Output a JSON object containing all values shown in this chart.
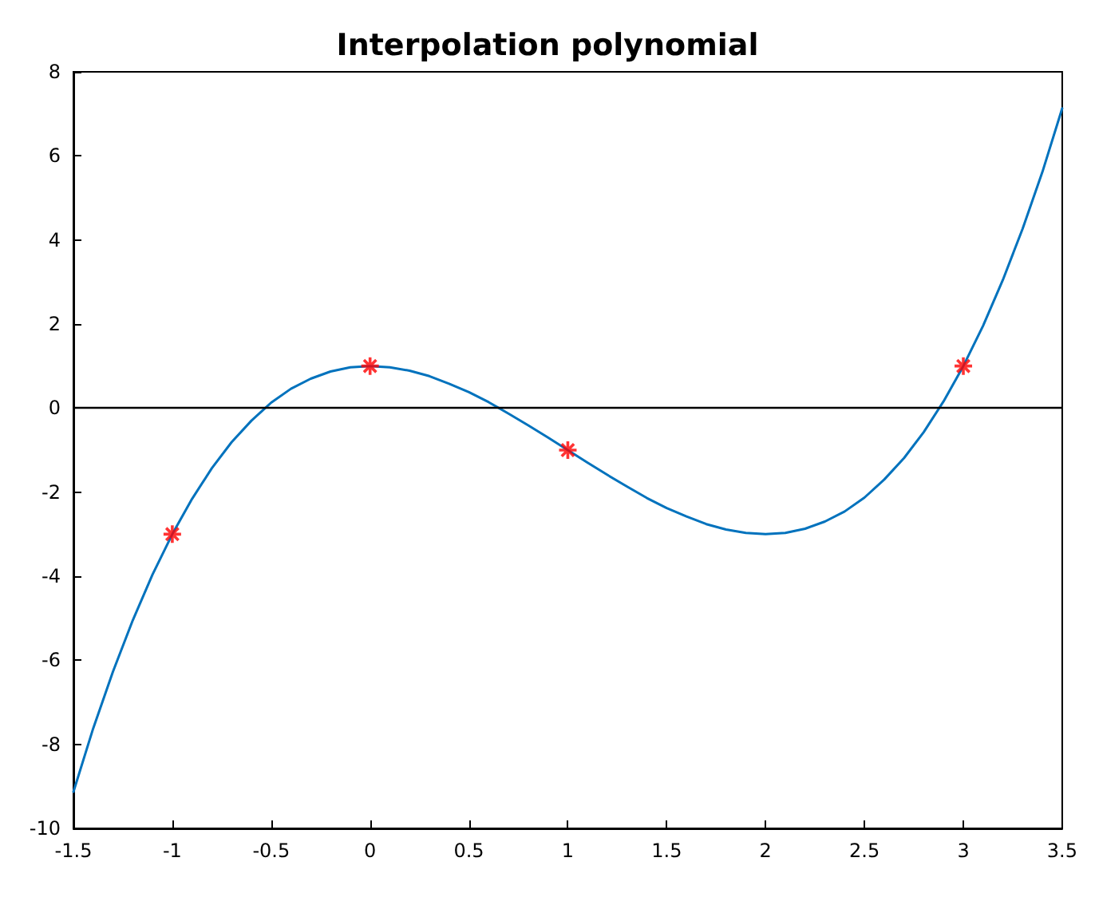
{
  "chart_data": {
    "type": "line",
    "title": "Interpolation polynomial",
    "xlim": [
      -1.5,
      3.5
    ],
    "xticks": [
      -1.5,
      -1,
      -0.5,
      0,
      0.5,
      1,
      1.5,
      2,
      2.5,
      3,
      3.5
    ],
    "ylim": [
      -10,
      8
    ],
    "yticks": [
      -10,
      -8,
      -6,
      -4,
      -2,
      0,
      2,
      4,
      6,
      8
    ],
    "grid": false,
    "series": [
      {
        "color": "#0072bd",
        "line_style": "solid",
        "marker": "none",
        "x": [
          -1.5,
          -1.4,
          -1.3,
          -1.2,
          -1.1,
          -1,
          -0.9,
          -0.8,
          -0.7,
          -0.6,
          -0.5,
          -0.4,
          -0.3,
          -0.2,
          -0.1,
          0,
          0.1,
          0.2,
          0.3,
          0.4,
          0.5,
          0.6,
          0.7,
          0.8,
          0.9,
          1,
          1.1,
          1.2,
          1.3,
          1.4,
          1.5,
          1.6,
          1.7,
          1.8,
          1.9,
          2,
          2.1,
          2.2,
          2.3,
          2.4,
          2.5,
          2.6,
          2.7,
          2.8,
          2.9,
          3,
          3.1,
          3.2,
          3.3,
          3.4,
          3.5
        ],
        "values": [
          -9.13,
          -7.62,
          -6.27,
          -5.05,
          -3.96,
          -3,
          -2.16,
          -1.43,
          -0.81,
          -0.3,
          0.13,
          0.46,
          0.7,
          0.87,
          0.97,
          1,
          0.97,
          0.89,
          0.76,
          0.58,
          0.38,
          0.14,
          -0.13,
          -0.41,
          -0.7,
          -1,
          -1.3,
          -1.59,
          -1.87,
          -2.14,
          -2.38,
          -2.58,
          -2.76,
          -2.89,
          -2.97,
          -3,
          -2.97,
          -2.87,
          -2.7,
          -2.46,
          -2.13,
          -1.7,
          -1.19,
          -0.57,
          0.16,
          1,
          1.96,
          3.05,
          4.27,
          5.62,
          7.13
        ]
      },
      {
        "type": "scatter",
        "color": "#ff0000",
        "marker": "cross",
        "x": [
          -1,
          0,
          1,
          3
        ],
        "values": [
          -3,
          1,
          -1,
          1
        ]
      }
    ],
    "ref_lines": [
      {
        "axis": "y",
        "value": 0,
        "color": "#000000"
      }
    ]
  }
}
